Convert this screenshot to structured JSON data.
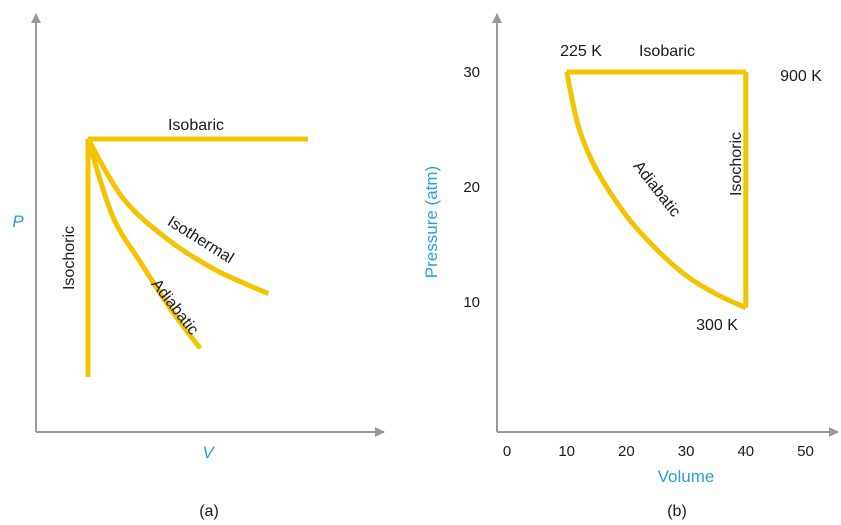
{
  "colors": {
    "curve": "#F5C400",
    "axis": "#999999",
    "axis_label": "#2A9FD8",
    "text": "#1a1a1a"
  },
  "chart_data": [
    {
      "type": "line",
      "caption": "(a)",
      "xlabel": "V",
      "ylabel": "P",
      "series": [
        {
          "name": "Isobaric",
          "x": [
            0,
            1
          ],
          "y": [
            1,
            1
          ]
        },
        {
          "name": "Isothermal",
          "x": [
            0,
            0.16,
            0.36,
            0.58,
            0.82
          ],
          "y": [
            1,
            0.75,
            0.58,
            0.45,
            0.35
          ]
        },
        {
          "name": "Adiabatic",
          "x": [
            0,
            0.11,
            0.24,
            0.38,
            0.51
          ],
          "y": [
            1,
            0.68,
            0.48,
            0.28,
            0.12
          ]
        },
        {
          "name": "Isochoric",
          "x": [
            0,
            0
          ],
          "y": [
            1,
            0
          ]
        }
      ]
    },
    {
      "type": "line",
      "caption": "(b)",
      "xlabel": "Volume",
      "ylabel": "Pressure (atm)",
      "xlim": [
        0,
        50
      ],
      "ylim": [
        0,
        30
      ],
      "xticks": [
        0,
        10,
        20,
        30,
        40,
        50
      ],
      "yticks": [
        10,
        20,
        30
      ],
      "series": [
        {
          "name": "Isobaric",
          "x": [
            10,
            40
          ],
          "y": [
            30,
            30
          ]
        },
        {
          "name": "Isochoric",
          "x": [
            40,
            40
          ],
          "y": [
            30,
            9.5
          ]
        },
        {
          "name": "Adiabatic",
          "x": [
            10,
            12,
            15,
            20,
            25,
            30,
            35,
            40
          ],
          "y": [
            30,
            25.2,
            21.5,
            17.5,
            14.6,
            12.3,
            10.7,
            9.5
          ]
        }
      ],
      "point_labels": [
        {
          "text": "225 K",
          "x": 10,
          "y": 30
        },
        {
          "text": "900 K",
          "x": 40,
          "y": 30
        },
        {
          "text": "300 K",
          "x": 40,
          "y": 9.5
        }
      ]
    }
  ]
}
